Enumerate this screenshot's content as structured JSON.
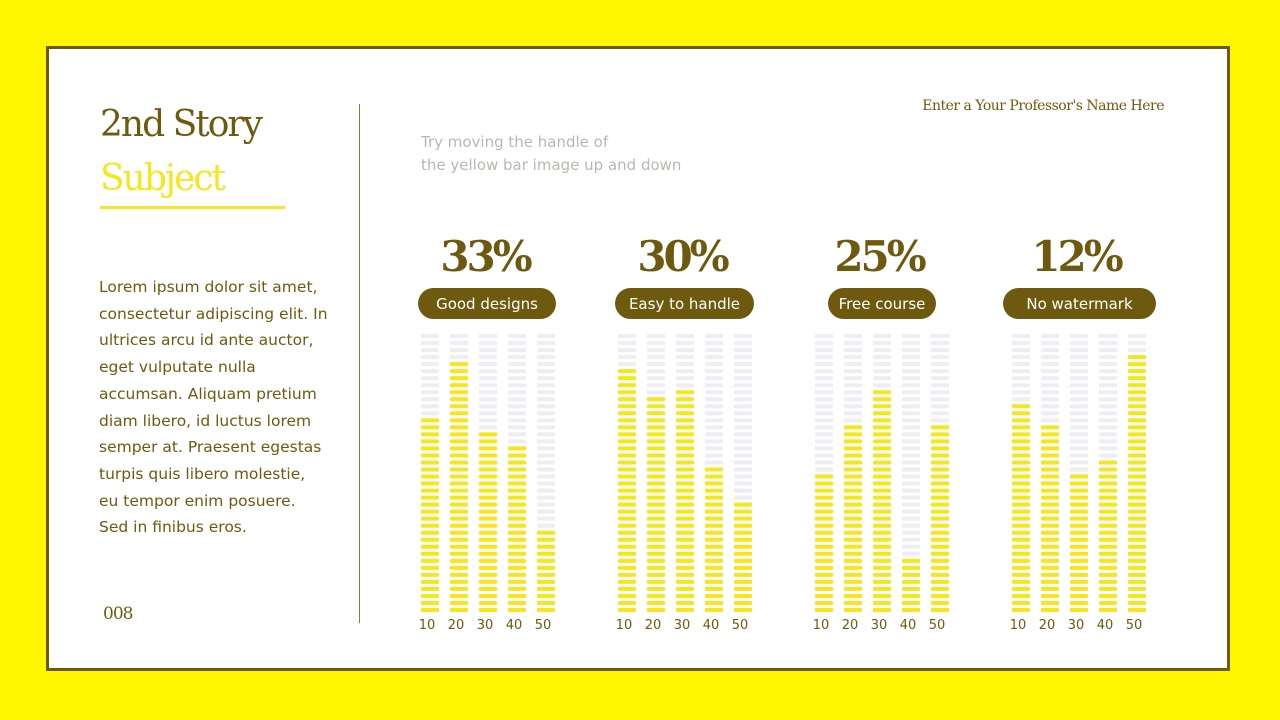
{
  "header": {
    "title_line1": "2nd Story",
    "title_line2": "Subject",
    "professor": "Enter a Your Professor's Name Here"
  },
  "hint": {
    "line1": "Try moving the handle of",
    "line2": "the yellow bar image up and down"
  },
  "body": {
    "paragraph": "Lorem ipsum dolor sit amet, consectetur adipiscing elit. In ultrices arcu id ante auctor, eget vulputate nulla accumsan. Aliquam pretium diam libero, id luctus lorem semper at. Praesent egestas turpis quis libero molestie, eu tempor enim posuere. Sed in finibus eros."
  },
  "page_number": "008",
  "colors": {
    "background": "#FFF700",
    "accent": "#F5E61E",
    "dark": "#6E5A0F",
    "empty_segment": "#EEEDF2"
  },
  "chart_data": [
    {
      "type": "bar",
      "percent_label": "33%",
      "label": "Good designs",
      "categories": [
        "10",
        "20",
        "30",
        "40",
        "50"
      ],
      "values": [
        71,
        90,
        65,
        59,
        30
      ],
      "ylim": [
        0,
        100
      ]
    },
    {
      "type": "bar",
      "percent_label": "30%",
      "label": "Easy to handle",
      "categories": [
        "10",
        "20",
        "30",
        "40",
        "50"
      ],
      "values": [
        87,
        78,
        81,
        52,
        39
      ],
      "ylim": [
        0,
        100
      ]
    },
    {
      "type": "bar",
      "percent_label": "25%",
      "label": "Free course",
      "categories": [
        "10",
        "20",
        "30",
        "40",
        "50"
      ],
      "values": [
        49,
        68,
        81,
        21,
        68
      ],
      "ylim": [
        0,
        100
      ]
    },
    {
      "type": "bar",
      "percent_label": "12%",
      "label": "No watermark",
      "categories": [
        "10",
        "20",
        "30",
        "40",
        "50"
      ],
      "values": [
        74,
        68,
        51,
        56,
        93
      ],
      "ylim": [
        0,
        100
      ]
    }
  ]
}
